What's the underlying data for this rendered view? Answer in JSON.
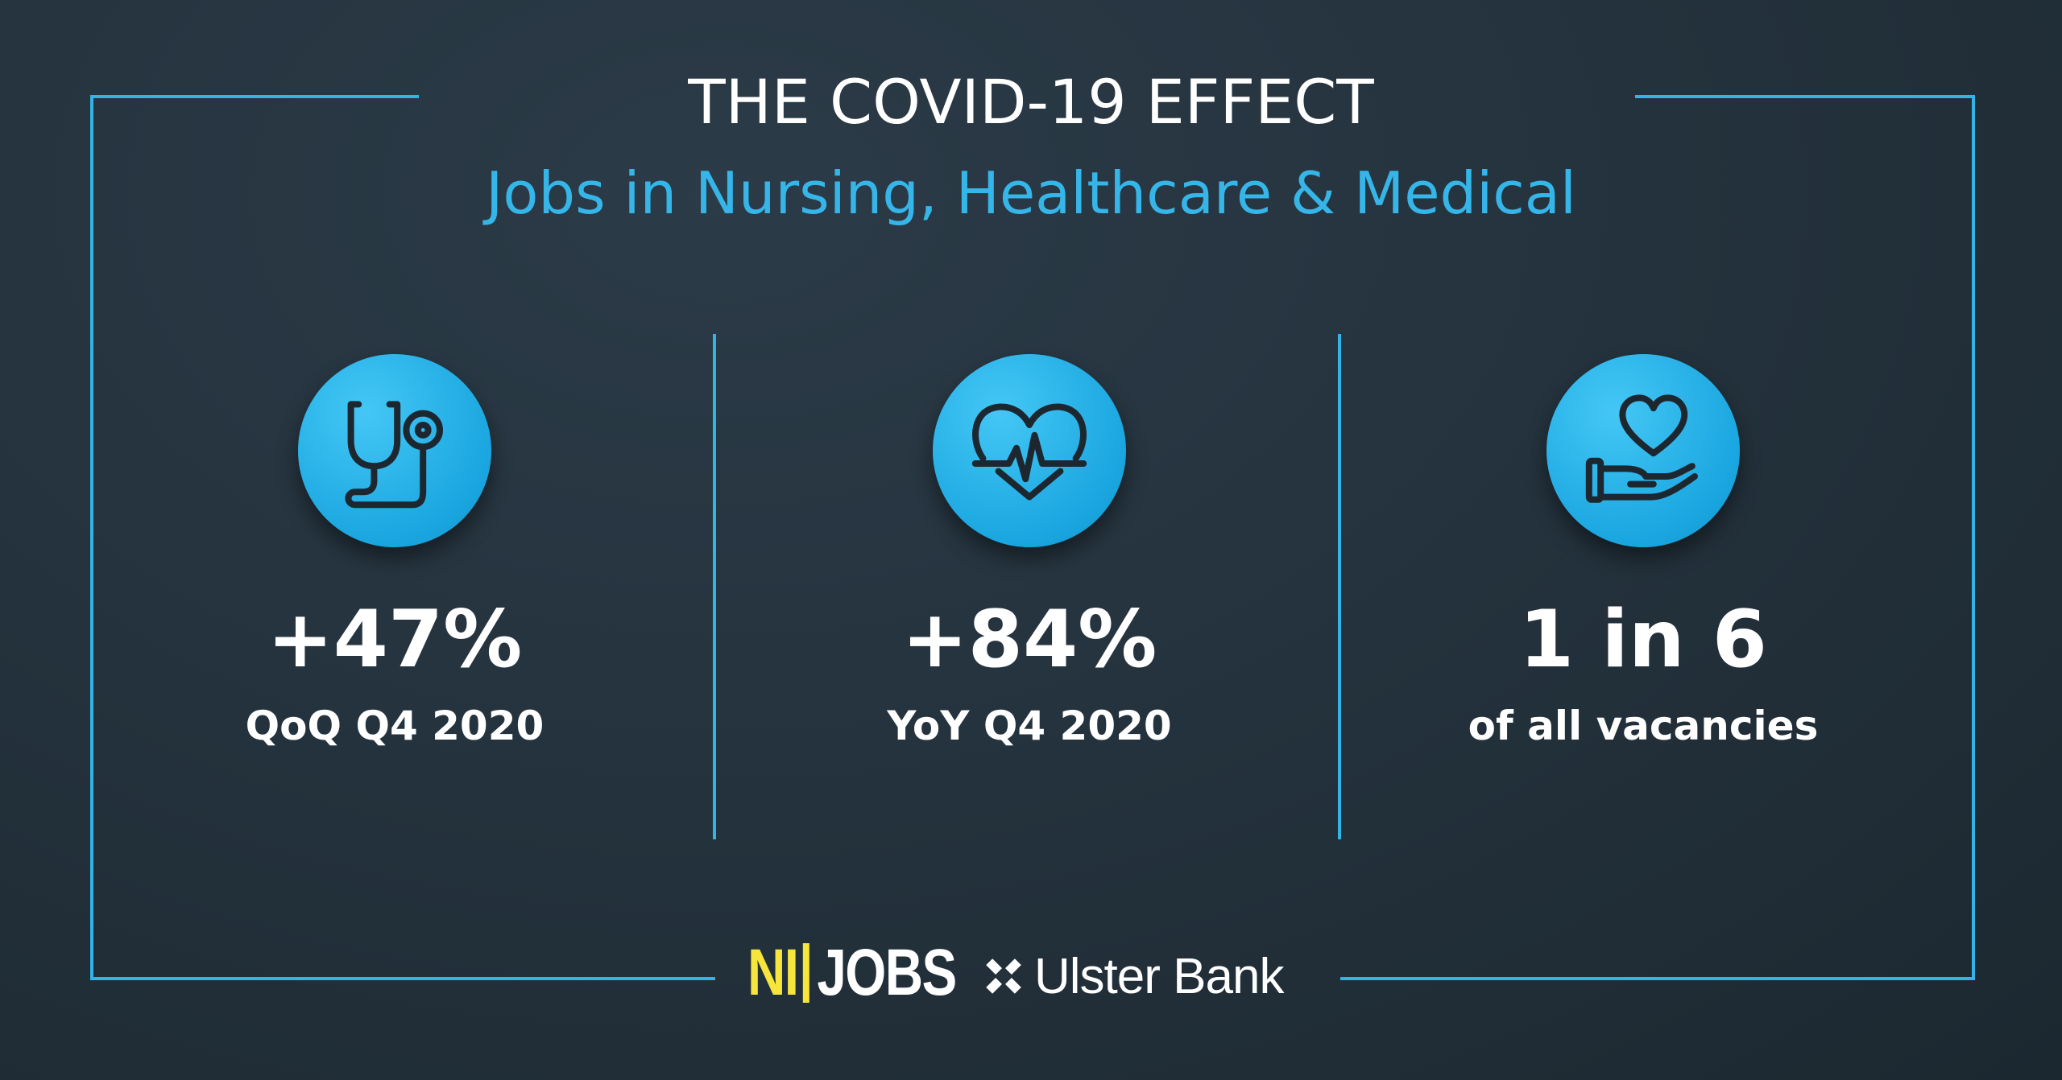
{
  "header": {
    "title": "THE COVID-19 EFFECT",
    "subtitle": "Jobs in Nursing, Healthcare & Medical"
  },
  "stats": [
    {
      "icon": "stethoscope-icon",
      "value": "+47%",
      "label": "QoQ Q4 2020"
    },
    {
      "icon": "heartbeat-icon",
      "value": "+84%",
      "label": "YoY Q4 2020"
    },
    {
      "icon": "heart-in-hand-icon",
      "value": "1 in 6",
      "label": "of all vacancies"
    }
  ],
  "footer": {
    "nijobs_ni": "NI",
    "nijobs_jobs": "JOBS",
    "ulster_bank": "Ulster Bank"
  },
  "colors": {
    "background": "#24323d",
    "accent": "#33b4e6",
    "title": "#ffffff",
    "subtitle": "#35b5e8",
    "nijobs_yellow": "#f6e53b"
  }
}
